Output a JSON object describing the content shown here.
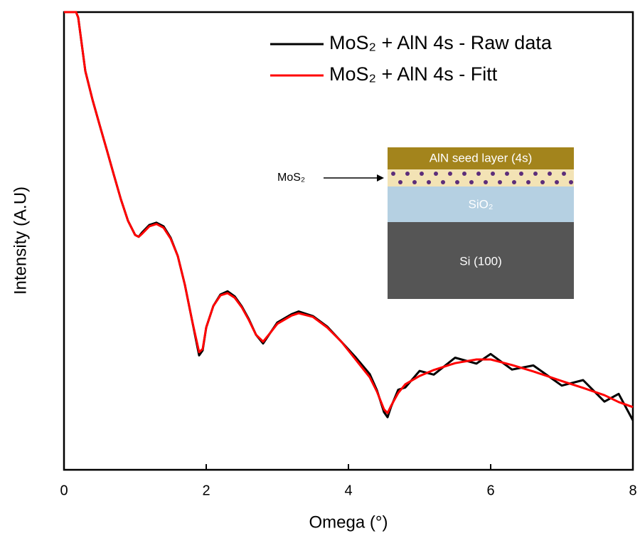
{
  "chart_data": {
    "type": "line",
    "x_label": "Omega (°)",
    "y_label": "Intensity (A.U)",
    "xlim": [
      0,
      8
    ],
    "xticks": [
      0,
      2,
      4,
      6,
      8
    ],
    "ylim": [
      0,
      100
    ],
    "legend_position": "upper right",
    "x": [
      0,
      0.17,
      0.2,
      0.3,
      0.4,
      0.5,
      0.6,
      0.7,
      0.8,
      0.9,
      1.0,
      1.05,
      1.1,
      1.2,
      1.3,
      1.4,
      1.5,
      1.6,
      1.7,
      1.8,
      1.9,
      1.95,
      2.0,
      2.1,
      2.2,
      2.3,
      2.4,
      2.5,
      2.6,
      2.7,
      2.8,
      2.9,
      3.0,
      3.2,
      3.3,
      3.5,
      3.7,
      3.9,
      4.1,
      4.3,
      4.4,
      4.5,
      4.55,
      4.6,
      4.7,
      4.8,
      5.0,
      5.2,
      5.5,
      5.8,
      6.0,
      6.3,
      6.6,
      7.0,
      7.3,
      7.6,
      7.8,
      8.0
    ],
    "series": [
      {
        "name": "MoS₂ + AlN 4s - Raw data",
        "color": "#000000",
        "values": [
          100,
          100,
          98.8,
          87.1,
          80.9,
          75.4,
          70.0,
          64.5,
          59.1,
          54.4,
          51.3,
          50.9,
          51.9,
          53.5,
          54.0,
          53.2,
          50.7,
          46.7,
          40.4,
          32.7,
          25.0,
          26.1,
          31.1,
          35.8,
          38.3,
          39.0,
          37.9,
          35.7,
          32.9,
          29.5,
          27.6,
          29.9,
          32.2,
          34.0,
          34.6,
          33.6,
          31.3,
          28.0,
          24.6,
          20.9,
          17.4,
          12.6,
          11.5,
          13.8,
          17.5,
          18.0,
          21.6,
          20.8,
          24.5,
          23.2,
          25.3,
          21.9,
          22.8,
          18.4,
          19.6,
          14.9,
          16.6,
          10.8
        ]
      },
      {
        "name": "MoS₂ + AlN 4s - Fitt",
        "color": "#ff0000",
        "values": [
          100,
          100,
          98.8,
          87.1,
          80.9,
          75.4,
          70.0,
          64.5,
          59.1,
          54.4,
          51.3,
          50.9,
          51.6,
          53.2,
          53.7,
          52.9,
          50.5,
          46.7,
          40.4,
          32.7,
          25.7,
          26.4,
          31.1,
          35.8,
          38.1,
          38.6,
          37.6,
          35.5,
          32.7,
          29.5,
          28.0,
          29.9,
          31.9,
          33.7,
          34.2,
          33.4,
          31.1,
          28.0,
          24.1,
          20.2,
          17.1,
          13.2,
          12.4,
          14.0,
          16.8,
          18.7,
          20.5,
          21.8,
          23.3,
          24.1,
          24.1,
          22.9,
          21.5,
          19.4,
          17.9,
          16.3,
          14.8,
          13.7
        ]
      }
    ],
    "inset": {
      "top_layer": "AlN seed layer (4s)",
      "arrow_label": "MoS₂",
      "middle_layer": "SiO₂",
      "bottom_layer": "Si (100)"
    }
  }
}
